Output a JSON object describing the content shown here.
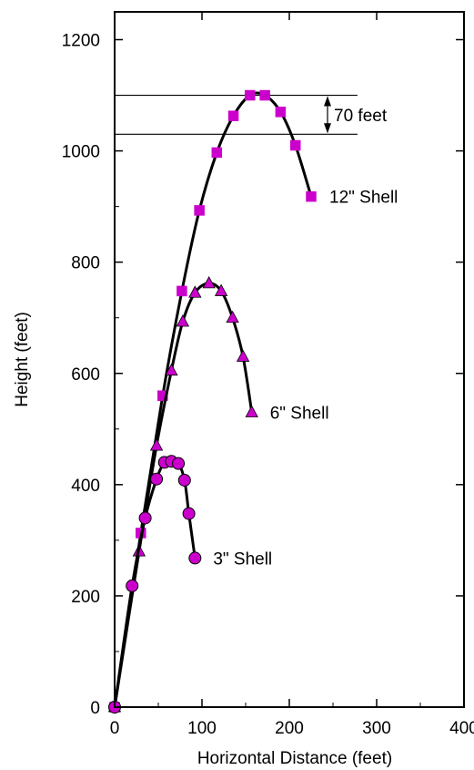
{
  "chart_data": {
    "type": "line",
    "title": "",
    "xlabel": "Horizontal Distance (feet)",
    "ylabel": "Height (feet)",
    "xlim": [
      0,
      400
    ],
    "ylim": [
      0,
      1250
    ],
    "x_ticks": [
      0,
      100,
      200,
      300,
      400
    ],
    "y_ticks": [
      0,
      200,
      400,
      600,
      800,
      1000,
      1200
    ],
    "grid": false,
    "marker_color": "#cc00cc",
    "line_color": "#000000",
    "series": [
      {
        "name": "12\" Shell",
        "marker": "square",
        "x": [
          0,
          30,
          55,
          77,
          97,
          117,
          136,
          155,
          172,
          190,
          207,
          225
        ],
        "y": [
          0,
          313,
          560,
          748,
          893,
          997,
          1063,
          1100,
          1100,
          1070,
          1010,
          918
        ]
      },
      {
        "name": "6\" Shell",
        "marker": "triangle",
        "x": [
          0,
          28,
          48,
          65,
          78,
          92,
          108,
          122,
          135,
          147,
          157
        ],
        "y": [
          0,
          280,
          470,
          605,
          693,
          745,
          762,
          748,
          700,
          630,
          530
        ]
      },
      {
        "name": "3\" Shell",
        "marker": "circle",
        "x": [
          0,
          20,
          35,
          48,
          57,
          65,
          73,
          80,
          85,
          92
        ],
        "y": [
          0,
          218,
          340,
          410,
          440,
          442,
          438,
          408,
          348,
          268
        ]
      }
    ],
    "annotations": {
      "dimension_label": "70 feet",
      "dimension_top": 1100,
      "dimension_bottom": 1030,
      "reference_line_x_end": 278
    }
  }
}
